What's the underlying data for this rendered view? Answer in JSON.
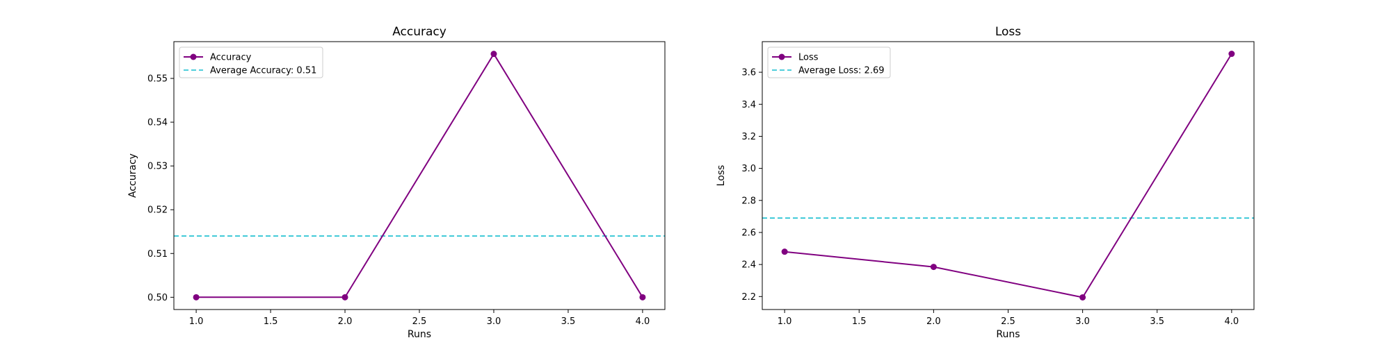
{
  "colors": {
    "series": "#800080",
    "average": "#17becf",
    "axis": "#000000",
    "legend_border": "#cccccc"
  },
  "chart_data": [
    {
      "type": "line",
      "title": "Accuracy",
      "xlabel": "Runs",
      "ylabel": "Accuracy",
      "x": [
        1,
        2,
        3,
        4
      ],
      "series": [
        {
          "name": "Accuracy",
          "values": [
            0.5,
            0.5,
            0.5556,
            0.5
          ]
        }
      ],
      "average": {
        "label": "Average Accuracy: 0.51",
        "value": 0.514
      },
      "xlim": [
        0.85,
        4.15
      ],
      "ylim": [
        0.4972,
        0.5584
      ],
      "xticks": [
        1.0,
        1.5,
        2.0,
        2.5,
        3.0,
        3.5,
        4.0
      ],
      "xtick_labels": [
        "1.0",
        "1.5",
        "2.0",
        "2.5",
        "3.0",
        "3.5",
        "4.0"
      ],
      "yticks": [
        0.5,
        0.51,
        0.52,
        0.53,
        0.54,
        0.55
      ],
      "ytick_labels": [
        "0.50",
        "0.51",
        "0.52",
        "0.53",
        "0.54",
        "0.55"
      ],
      "grid": false,
      "legend_position": "top-left"
    },
    {
      "type": "line",
      "title": "Loss",
      "xlabel": "Runs",
      "ylabel": "Loss",
      "x": [
        1,
        2,
        3,
        4
      ],
      "series": [
        {
          "name": "Loss",
          "values": [
            2.48,
            2.385,
            2.195,
            3.715
          ]
        }
      ],
      "average": {
        "label": "Average Loss: 2.69",
        "value": 2.69
      },
      "xlim": [
        0.85,
        4.15
      ],
      "ylim": [
        2.119,
        3.791
      ],
      "xticks": [
        1.0,
        1.5,
        2.0,
        2.5,
        3.0,
        3.5,
        4.0
      ],
      "xtick_labels": [
        "1.0",
        "1.5",
        "2.0",
        "2.5",
        "3.0",
        "3.5",
        "4.0"
      ],
      "yticks": [
        2.2,
        2.4,
        2.6,
        2.8,
        3.0,
        3.2,
        3.4,
        3.6
      ],
      "ytick_labels": [
        "2.2",
        "2.4",
        "2.6",
        "2.8",
        "3.0",
        "3.2",
        "3.4",
        "3.6"
      ],
      "grid": false,
      "legend_position": "top-left"
    }
  ]
}
